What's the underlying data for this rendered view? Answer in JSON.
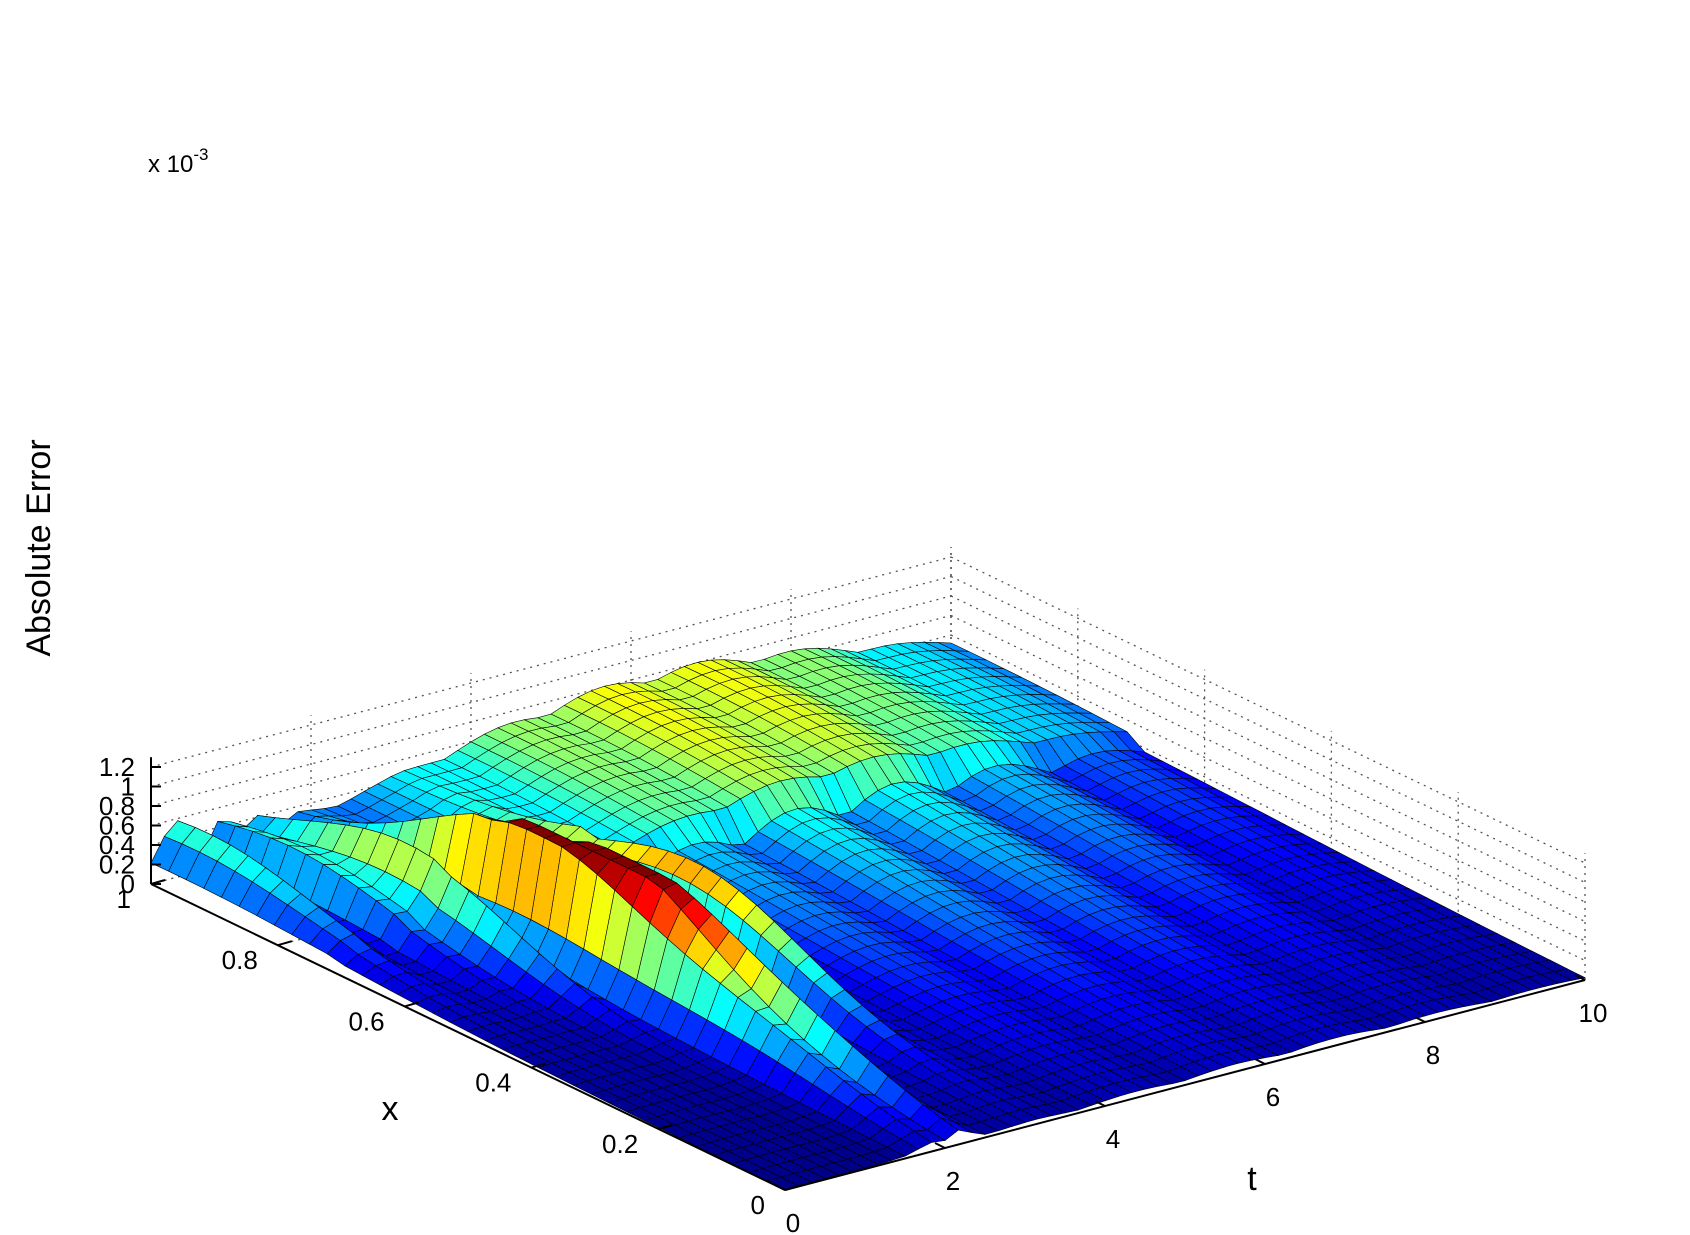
{
  "chart_data": {
    "type": "surface",
    "title": "",
    "xlabel": "t",
    "ylabel": "x",
    "zlabel": "Absolute Error",
    "z_multiplier": "x 10",
    "z_multiplier_exp": "-3",
    "xlim": [
      0,
      10
    ],
    "ylim": [
      0,
      1
    ],
    "zlim": [
      0,
      1.3
    ],
    "x_ticks": [
      "0",
      "2",
      "4",
      "6",
      "8",
      "10"
    ],
    "y_ticks": [
      "0",
      "0.2",
      "0.4",
      "0.6",
      "0.8",
      "1"
    ],
    "z_ticks": [
      "0",
      "0.2",
      "0.4",
      "0.6",
      "0.8",
      "1",
      "1.2"
    ],
    "grid": true,
    "colormap": "jet",
    "colors": [
      "#00008f",
      "#0000ff",
      "#0080ff",
      "#00ffff",
      "#80ff80",
      "#ffff00",
      "#ff8000",
      "#ff0000",
      "#800000"
    ],
    "peak_error": 1.3,
    "spikes": [
      {
        "t": 0.3,
        "x": 0.95,
        "peak": 0.45
      },
      {
        "t": 0.9,
        "x": 0.88,
        "peak": 0.5
      },
      {
        "t": 1.3,
        "x": 0.76,
        "peak": 0.72
      },
      {
        "t": 1.85,
        "x": 0.64,
        "peak": 1.04
      },
      {
        "t": 2.1,
        "x": 0.53,
        "peak": 1.32
      },
      {
        "t": 3.1,
        "x": 0.53,
        "peak": 0.88
      },
      {
        "t": 1.8,
        "x": 0.3,
        "peak": 0.4
      },
      {
        "t": 2.2,
        "x": 0.25,
        "peak": 0.42
      }
    ]
  }
}
